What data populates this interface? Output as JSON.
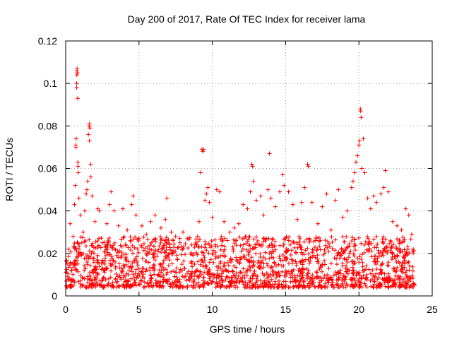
{
  "chart_data": {
    "type": "scatter",
    "title": "Day 200 of 2017, Rate Of TEC Index for receiver lama",
    "xlabel": "GPS time / hours",
    "ylabel": "ROTI / TECUs",
    "xlim": [
      0,
      25
    ],
    "ylim": [
      0,
      0.12
    ],
    "xticks": [
      0,
      5,
      10,
      15,
      20,
      25
    ],
    "xtick_labels": [
      "0",
      "5",
      "10",
      "15",
      "20",
      "25"
    ],
    "yticks": [
      0,
      0.02,
      0.04,
      0.06,
      0.08,
      0.1,
      0.12
    ],
    "ytick_labels": [
      "0",
      "0.02",
      "0.04",
      "0.06",
      "0.08",
      "0.1",
      "0.12"
    ],
    "grid": true,
    "marker": "+",
    "color": "#ff0000",
    "series": [
      {
        "name": "ROTI",
        "points": [
          [
            0.1,
            0.015
          ],
          [
            0.2,
            0.022
          ],
          [
            0.3,
            0.034
          ],
          [
            0.4,
            0.012
          ],
          [
            0.5,
            0.028
          ],
          [
            0.6,
            0.043
          ],
          [
            0.65,
            0.052
          ],
          [
            0.7,
            0.071
          ],
          [
            0.7,
            0.07
          ],
          [
            0.72,
            0.074
          ],
          [
            0.75,
            0.098
          ],
          [
            0.75,
            0.1
          ],
          [
            0.76,
            0.104
          ],
          [
            0.77,
            0.106
          ],
          [
            0.78,
            0.107
          ],
          [
            0.8,
            0.105
          ],
          [
            0.82,
            0.093
          ],
          [
            0.83,
            0.063
          ],
          [
            0.84,
            0.061
          ],
          [
            0.86,
            0.058
          ],
          [
            0.9,
            0.046
          ],
          [
            1.0,
            0.038
          ],
          [
            1.1,
            0.025
          ],
          [
            1.2,
            0.03
          ],
          [
            1.3,
            0.04
          ],
          [
            1.4,
            0.048
          ],
          [
            1.45,
            0.05
          ],
          [
            1.5,
            0.054
          ],
          [
            1.55,
            0.076
          ],
          [
            1.6,
            0.08
          ],
          [
            1.62,
            0.081
          ],
          [
            1.65,
            0.079
          ],
          [
            1.62,
            0.073
          ],
          [
            1.7,
            0.062
          ],
          [
            1.72,
            0.056
          ],
          [
            1.8,
            0.047
          ],
          [
            2.0,
            0.035
          ],
          [
            2.2,
            0.041
          ],
          [
            2.3,
            0.04
          ],
          [
            2.5,
            0.025
          ],
          [
            2.8,
            0.034
          ],
          [
            3.0,
            0.043
          ],
          [
            3.1,
            0.049
          ],
          [
            3.3,
            0.04
          ],
          [
            3.6,
            0.033
          ],
          [
            3.9,
            0.041
          ],
          [
            4.2,
            0.031
          ],
          [
            4.5,
            0.043
          ],
          [
            4.6,
            0.047
          ],
          [
            4.8,
            0.038
          ],
          [
            5.0,
            0.027
          ],
          [
            5.2,
            0.033
          ],
          [
            5.5,
            0.029
          ],
          [
            5.8,
            0.035
          ],
          [
            6.1,
            0.038
          ],
          [
            6.5,
            0.032
          ],
          [
            6.8,
            0.036
          ],
          [
            6.9,
            0.046
          ],
          [
            7.2,
            0.03
          ],
          [
            7.5,
            0.028
          ],
          [
            7.8,
            0.025
          ],
          [
            8.0,
            0.03
          ],
          [
            8.3,
            0.027
          ],
          [
            8.6,
            0.024
          ],
          [
            9.0,
            0.028
          ],
          [
            9.1,
            0.035
          ],
          [
            9.2,
            0.058
          ],
          [
            9.3,
            0.069
          ],
          [
            9.35,
            0.068
          ],
          [
            9.4,
            0.069
          ],
          [
            9.5,
            0.045
          ],
          [
            9.6,
            0.048
          ],
          [
            9.7,
            0.051
          ],
          [
            9.8,
            0.044
          ],
          [
            10.0,
            0.037
          ],
          [
            10.3,
            0.05
          ],
          [
            10.5,
            0.049
          ],
          [
            10.8,
            0.035
          ],
          [
            11.2,
            0.03
          ],
          [
            11.5,
            0.032
          ],
          [
            11.8,
            0.034
          ],
          [
            12.1,
            0.043
          ],
          [
            12.4,
            0.041
          ],
          [
            12.6,
            0.049
          ],
          [
            12.7,
            0.062
          ],
          [
            12.75,
            0.061
          ],
          [
            12.8,
            0.054
          ],
          [
            13.0,
            0.045
          ],
          [
            13.3,
            0.047
          ],
          [
            13.5,
            0.038
          ],
          [
            13.8,
            0.05
          ],
          [
            13.9,
            0.067
          ],
          [
            14.0,
            0.046
          ],
          [
            14.3,
            0.042
          ],
          [
            14.6,
            0.049
          ],
          [
            14.8,
            0.057
          ],
          [
            14.9,
            0.052
          ],
          [
            15.2,
            0.049
          ],
          [
            15.5,
            0.043
          ],
          [
            15.8,
            0.036
          ],
          [
            16.1,
            0.044
          ],
          [
            16.3,
            0.051
          ],
          [
            16.5,
            0.062
          ],
          [
            16.55,
            0.061
          ],
          [
            16.8,
            0.044
          ],
          [
            17.2,
            0.034
          ],
          [
            17.5,
            0.042
          ],
          [
            17.8,
            0.048
          ],
          [
            18.1,
            0.031
          ],
          [
            18.4,
            0.045
          ],
          [
            18.6,
            0.05
          ],
          [
            18.9,
            0.037
          ],
          [
            19.2,
            0.04
          ],
          [
            19.5,
            0.051
          ],
          [
            19.6,
            0.054
          ],
          [
            19.7,
            0.058
          ],
          [
            19.8,
            0.063
          ],
          [
            19.9,
            0.066
          ],
          [
            20.0,
            0.071
          ],
          [
            20.05,
            0.073
          ],
          [
            20.1,
            0.088
          ],
          [
            20.12,
            0.087
          ],
          [
            20.15,
            0.084
          ],
          [
            20.2,
            0.06
          ],
          [
            20.3,
            0.074
          ],
          [
            20.4,
            0.058
          ],
          [
            20.6,
            0.046
          ],
          [
            20.8,
            0.041
          ],
          [
            21.0,
            0.047
          ],
          [
            21.2,
            0.044
          ],
          [
            21.5,
            0.048
          ],
          [
            21.7,
            0.051
          ],
          [
            21.8,
            0.059
          ],
          [
            22.0,
            0.049
          ],
          [
            22.3,
            0.035
          ],
          [
            22.6,
            0.033
          ],
          [
            22.9,
            0.031
          ],
          [
            23.2,
            0.041
          ],
          [
            23.4,
            0.038
          ],
          [
            23.6,
            0.029
          ],
          [
            23.7,
            0.022
          ]
        ],
        "band": {
          "x_start": 0.0,
          "x_end": 23.8,
          "y_min": 0.004,
          "y_typical_max": 0.028
        }
      }
    ]
  }
}
